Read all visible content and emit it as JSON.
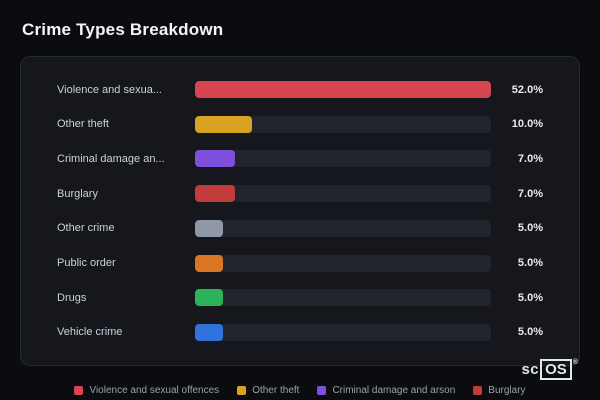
{
  "page": {
    "title": "Crime Types Breakdown"
  },
  "chart_data": {
    "type": "bar",
    "orientation": "horizontal",
    "title": "Crime Types Breakdown",
    "categories": [
      "Violence and sexua...",
      "Other theft",
      "Criminal damage an...",
      "Burglary",
      "Other crime",
      "Public order",
      "Drugs",
      "Vehicle crime"
    ],
    "values": [
      52.0,
      10.0,
      7.0,
      7.0,
      5.0,
      5.0,
      5.0,
      5.0
    ],
    "value_labels": [
      "52.0%",
      "10.0%",
      "7.0%",
      "7.0%",
      "5.0%",
      "5.0%",
      "5.0%",
      "5.0%"
    ],
    "bar_colors": [
      "#d64550",
      "#d9a321",
      "#7d4fdc",
      "#c23c3c",
      "#8e98a6",
      "#d97625",
      "#2bb35a",
      "#3173dd"
    ],
    "max_value": 52,
    "xlim": [
      0,
      52
    ],
    "unit": "%",
    "grid": false,
    "legend_position": "bottom",
    "legend": [
      {
        "label": "Violence and sexual offences",
        "color": "#d64550"
      },
      {
        "label": "Other theft",
        "color": "#d9a321"
      },
      {
        "label": "Criminal damage and arson",
        "color": "#7d4fdc"
      },
      {
        "label": "Burglary",
        "color": "#c23c3c"
      }
    ]
  },
  "branding": {
    "prefix": "sc",
    "boxed": "OS",
    "registered": "®"
  },
  "colors": {
    "background": "#0b0c10",
    "card": "#15171d",
    "card_border": "#262933",
    "track": "#21242c",
    "title_text": "#f4f5f7",
    "label_text": "#ccd1d9",
    "legend_text": "#9aa1ab"
  }
}
